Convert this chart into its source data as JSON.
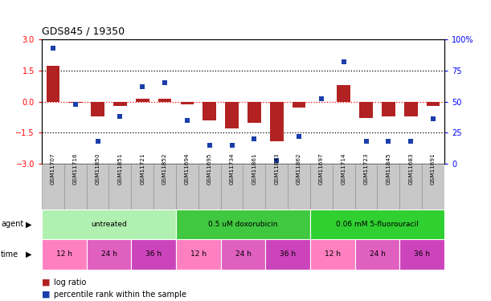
{
  "title": "GDS845 / 19350",
  "samples": [
    "GSM11707",
    "GSM11716",
    "GSM11850",
    "GSM11851",
    "GSM11721",
    "GSM11852",
    "GSM11694",
    "GSM11695",
    "GSM11734",
    "GSM11861",
    "GSM11843",
    "GSM11862",
    "GSM11697",
    "GSM11714",
    "GSM11723",
    "GSM11845",
    "GSM11683",
    "GSM11691"
  ],
  "log_ratio": [
    1.7,
    -0.05,
    -0.7,
    -0.2,
    0.15,
    0.15,
    -0.15,
    -0.9,
    -1.3,
    -1.0,
    -1.9,
    -0.3,
    0.0,
    0.8,
    -0.8,
    -0.7,
    -0.7,
    -0.2
  ],
  "percentile": [
    93,
    48,
    18,
    38,
    62,
    65,
    35,
    15,
    15,
    20,
    3,
    22,
    52,
    82,
    18,
    18,
    18,
    36
  ],
  "bar_color": "#b22222",
  "dot_color": "#1a3eaa",
  "ylim_left": [
    -3,
    3
  ],
  "ylim_right": [
    0,
    100
  ],
  "left_ticks": [
    -3,
    -1.5,
    0,
    1.5,
    3
  ],
  "right_ticks": [
    0,
    25,
    50,
    75,
    100
  ],
  "right_tick_labels": [
    "0",
    "25",
    "50",
    "75",
    "100%"
  ],
  "agent_groups": [
    {
      "label": "untreated",
      "start": 0,
      "end": 6,
      "color": "#b0f0b0"
    },
    {
      "label": "0.5 uM doxorubicin",
      "start": 6,
      "end": 12,
      "color": "#40c840"
    },
    {
      "label": "0.06 mM 5-fluorouracil",
      "start": 12,
      "end": 18,
      "color": "#30d030"
    }
  ],
  "time_groups": [
    {
      "label": "12 h",
      "start": 0,
      "end": 2,
      "color": "#ff80c0"
    },
    {
      "label": "24 h",
      "start": 2,
      "end": 4,
      "color": "#e060c0"
    },
    {
      "label": "36 h",
      "start": 4,
      "end": 6,
      "color": "#cc44bb"
    },
    {
      "label": "12 h",
      "start": 6,
      "end": 8,
      "color": "#ff80c0"
    },
    {
      "label": "24 h",
      "start": 8,
      "end": 10,
      "color": "#e060c0"
    },
    {
      "label": "36 h",
      "start": 10,
      "end": 12,
      "color": "#cc44bb"
    },
    {
      "label": "12 h",
      "start": 12,
      "end": 14,
      "color": "#ff80c0"
    },
    {
      "label": "24 h",
      "start": 14,
      "end": 16,
      "color": "#e060c0"
    },
    {
      "label": "36 h",
      "start": 16,
      "end": 18,
      "color": "#cc44bb"
    }
  ],
  "sample_bg": "#c8c8c8",
  "sample_border": "#888888"
}
